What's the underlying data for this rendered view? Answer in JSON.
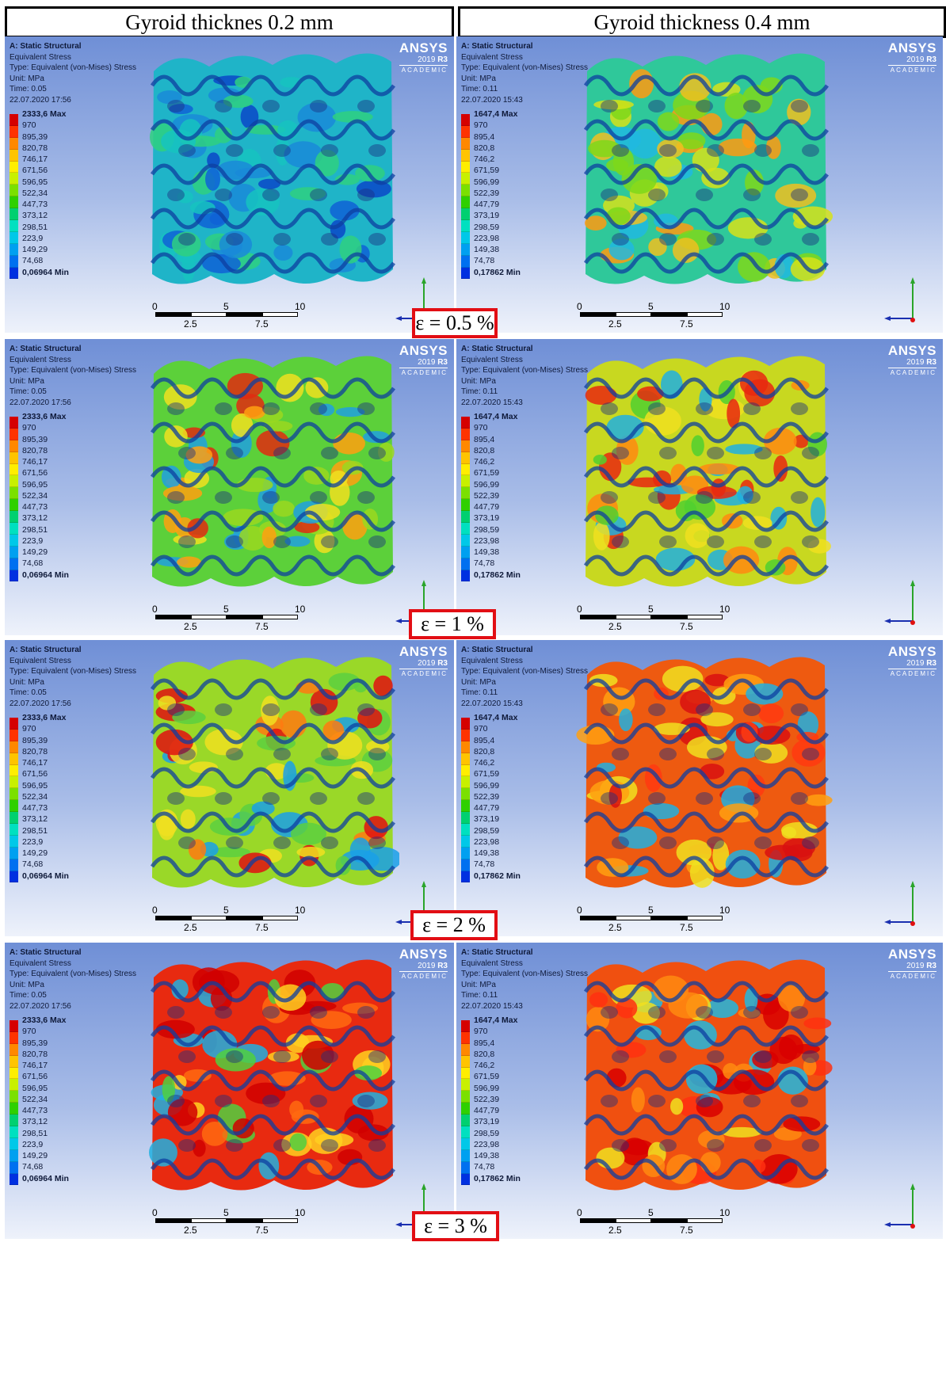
{
  "headers": [
    "Gyroid thicknes 0.2 mm",
    "Gyroid thickness 0.4 mm"
  ],
  "strain_labels": [
    "ε = 0.5 %",
    "ε = 1 %",
    "ε = 2 %",
    "ε = 3 %"
  ],
  "logo": {
    "brand": "ANSYS",
    "version_prefix": "2019 ",
    "version_suffix": "R3",
    "edition": "ACADEMIC"
  },
  "panels_left": {
    "info": {
      "title": "A: Static Structural",
      "line1": "Equivalent Stress",
      "line2": "Type: Equivalent (von-Mises) Stress",
      "line3": "Unit: MPa",
      "line4": "Time: 0.05",
      "line5": "22.07.2020 17:56"
    },
    "legend": [
      "2333,6 Max",
      "970",
      "895,39",
      "820,78",
      "746,17",
      "671,56",
      "596,95",
      "522,34",
      "447,73",
      "373,12",
      "298,51",
      "223,9",
      "149,29",
      "74,68",
      "0,06964 Min"
    ]
  },
  "panels_right": {
    "info": {
      "title": "A: Static Structural",
      "line1": "Equivalent Stress",
      "line2": "Type: Equivalent (von-Mises) Stress",
      "line3": "Unit: MPa",
      "line4": "Time: 0.11",
      "line5": "22.07.2020 15:43"
    },
    "legend": [
      "1647,4 Max",
      "970",
      "895,4",
      "820,8",
      "746,2",
      "671,59",
      "596,99",
      "522,39",
      "447,79",
      "373,19",
      "298,59",
      "223,98",
      "149,38",
      "74,78",
      "0,17862 Min"
    ]
  },
  "legend_colors": [
    "#d50000",
    "#ff3300",
    "#ff8800",
    "#ffc400",
    "#ffee00",
    "#c8f000",
    "#7be000",
    "#2fd000",
    "#00d070",
    "#00e0c0",
    "#00c8e8",
    "#00a0f0",
    "#0070f0",
    "#0030e0"
  ],
  "scale": {
    "major": [
      "0",
      "5",
      "10"
    ],
    "minor": [
      "2.5",
      "7.5"
    ]
  },
  "rows": [
    {
      "left_base": "#1fb4c8",
      "left_spots": [
        "#0a48c8",
        "#1a8ad8",
        "#16c3c0",
        "#2fd080",
        "#0f62d6"
      ],
      "right_base": "#2fc89a",
      "right_spots": [
        "#d6e21a",
        "#ff9a10",
        "#20b8e0",
        "#7ed81a",
        "#f0c020"
      ]
    },
    {
      "left_base": "#5cd03a",
      "left_spots": [
        "#e02a10",
        "#f0e020",
        "#20a0e0",
        "#ffa010",
        "#9ad820"
      ],
      "right_base": "#c8d820",
      "right_spots": [
        "#e82810",
        "#ff8a10",
        "#20b0e0",
        "#f0e020",
        "#50d030"
      ]
    },
    {
      "left_base": "#9ad828",
      "left_spots": [
        "#e01010",
        "#f0e020",
        "#1aa0e8",
        "#ff7a10",
        "#5cd040"
      ],
      "right_base": "#ee5a10",
      "right_spots": [
        "#d81010",
        "#ffa010",
        "#20b0e0",
        "#f0e020",
        "#ff3a10"
      ]
    },
    {
      "left_base": "#e82a10",
      "left_spots": [
        "#d00000",
        "#ffd020",
        "#20b0e0",
        "#50d040",
        "#ff6a10"
      ],
      "right_base": "#f05010",
      "right_spots": [
        "#d80000",
        "#ff8a10",
        "#20b8e0",
        "#f0e020",
        "#ff3010"
      ]
    }
  ]
}
